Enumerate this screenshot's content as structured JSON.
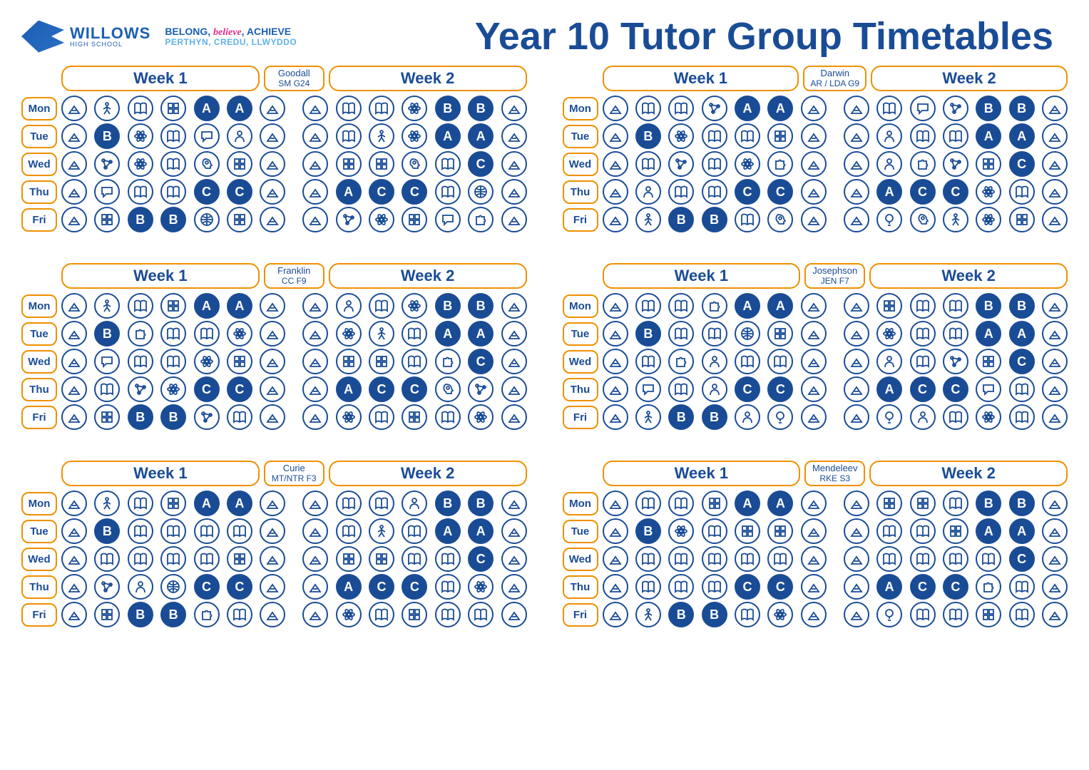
{
  "school": {
    "name": "WILLOWS",
    "sub": "HIGH SCHOOL"
  },
  "tagline": {
    "l1a": "BELONG,",
    "l1b": "believe",
    "l1c": ", ACHIEVE",
    "l2": "PERTHYN, CREDU, LLWYDDO"
  },
  "page_title": "Year 10 Tutor Group Timetables",
  "labels": {
    "week1": "Week 1",
    "week2": "Week 2"
  },
  "days": [
    "Mon",
    "Tue",
    "Wed",
    "Thu",
    "Fri"
  ],
  "colors": {
    "accent_orange": "#f09000",
    "brand_blue": "#1a4c96",
    "white": "#ffffff",
    "tagline_pink": "#e62b87",
    "tagline_cyan": "#5db3e8"
  },
  "icon_types": [
    "tutor",
    "pe",
    "book",
    "grid",
    "atom",
    "globe",
    "speech",
    "head",
    "person",
    "nodes",
    "think",
    "puzzle",
    "A",
    "B",
    "C"
  ],
  "groups": [
    {
      "name": "Goodall",
      "room": "SM G24",
      "w1": [
        [
          "tutor",
          "pe",
          "book",
          "grid",
          "A+",
          "A+",
          "tutor"
        ],
        [
          "tutor",
          "B+",
          "atom",
          "book",
          "speech",
          "person",
          "tutor"
        ],
        [
          "tutor",
          "nodes",
          "atom",
          "book",
          "head",
          "grid",
          "tutor"
        ],
        [
          "tutor",
          "speech",
          "book",
          "book",
          "C+",
          "C+",
          "tutor"
        ],
        [
          "tutor",
          "grid",
          "B+",
          "B+",
          "globe",
          "grid",
          "tutor"
        ]
      ],
      "w2": [
        [
          "tutor",
          "book",
          "book",
          "atom",
          "B+",
          "B+",
          "tutor"
        ],
        [
          "tutor",
          "book",
          "pe",
          "atom",
          "A+",
          "A+",
          "tutor"
        ],
        [
          "tutor",
          "grid",
          "grid",
          "head",
          "book",
          "C+",
          "tutor"
        ],
        [
          "tutor",
          "A+",
          "C+",
          "C+",
          "book",
          "globe",
          "tutor"
        ],
        [
          "tutor",
          "nodes",
          "atom",
          "grid",
          "speech",
          "puzzle",
          "tutor"
        ]
      ]
    },
    {
      "name": "Darwin",
      "room": "AR / LDA G9",
      "w1": [
        [
          "tutor",
          "book",
          "book",
          "nodes",
          "A+",
          "A+",
          "tutor"
        ],
        [
          "tutor",
          "B+",
          "atom",
          "book",
          "book",
          "grid",
          "tutor"
        ],
        [
          "tutor",
          "book",
          "nodes",
          "book",
          "atom",
          "puzzle",
          "tutor"
        ],
        [
          "tutor",
          "person",
          "book",
          "book",
          "C+",
          "C+",
          "tutor"
        ],
        [
          "tutor",
          "pe",
          "B+",
          "B+",
          "book",
          "head",
          "tutor"
        ]
      ],
      "w2": [
        [
          "tutor",
          "book",
          "speech",
          "nodes",
          "B+",
          "B+",
          "tutor"
        ],
        [
          "tutor",
          "person",
          "book",
          "book",
          "A+",
          "A+",
          "tutor"
        ],
        [
          "tutor",
          "person",
          "puzzle",
          "nodes",
          "grid",
          "C+",
          "tutor"
        ],
        [
          "tutor",
          "A+",
          "C+",
          "C+",
          "atom",
          "book",
          "tutor"
        ],
        [
          "tutor",
          "think",
          "head",
          "pe",
          "atom",
          "grid",
          "tutor"
        ]
      ]
    },
    {
      "name": "Franklin",
      "room": "CC F9",
      "w1": [
        [
          "tutor",
          "pe",
          "book",
          "grid",
          "A+",
          "A+",
          "tutor"
        ],
        [
          "tutor",
          "B+",
          "puzzle",
          "book",
          "book",
          "atom",
          "tutor"
        ],
        [
          "tutor",
          "speech",
          "book",
          "book",
          "atom",
          "grid",
          "tutor"
        ],
        [
          "tutor",
          "book",
          "nodes",
          "atom",
          "C+",
          "C+",
          "tutor"
        ],
        [
          "tutor",
          "grid",
          "B+",
          "B+",
          "nodes",
          "book",
          "tutor"
        ]
      ],
      "w2": [
        [
          "tutor",
          "person",
          "book",
          "atom",
          "B+",
          "B+",
          "tutor"
        ],
        [
          "tutor",
          "atom",
          "pe",
          "book",
          "A+",
          "A+",
          "tutor"
        ],
        [
          "tutor",
          "grid",
          "grid",
          "book",
          "puzzle",
          "C+",
          "tutor"
        ],
        [
          "tutor",
          "A+",
          "C+",
          "C+",
          "head",
          "nodes",
          "tutor"
        ],
        [
          "tutor",
          "atom",
          "book",
          "grid",
          "book",
          "atom",
          "tutor"
        ]
      ]
    },
    {
      "name": "Josephson",
      "room": "JEN F7",
      "w1": [
        [
          "tutor",
          "book",
          "book",
          "puzzle",
          "A+",
          "A+",
          "tutor"
        ],
        [
          "tutor",
          "B+",
          "book",
          "book",
          "globe",
          "grid",
          "tutor"
        ],
        [
          "tutor",
          "book",
          "puzzle",
          "person",
          "book",
          "book",
          "tutor"
        ],
        [
          "tutor",
          "speech",
          "book",
          "person",
          "C+",
          "C+",
          "tutor"
        ],
        [
          "tutor",
          "pe",
          "B+",
          "B+",
          "person",
          "think",
          "tutor"
        ]
      ],
      "w2": [
        [
          "tutor",
          "grid",
          "book",
          "book",
          "B+",
          "B+",
          "tutor"
        ],
        [
          "tutor",
          "atom",
          "book",
          "book",
          "A+",
          "A+",
          "tutor"
        ],
        [
          "tutor",
          "person",
          "book",
          "nodes",
          "grid",
          "C+",
          "tutor"
        ],
        [
          "tutor",
          "A+",
          "C+",
          "C+",
          "speech",
          "book",
          "tutor"
        ],
        [
          "tutor",
          "think",
          "person",
          "book",
          "atom",
          "book",
          "tutor"
        ]
      ]
    },
    {
      "name": "Curie",
      "room": "MT/NTR F3",
      "w1": [
        [
          "tutor",
          "pe",
          "book",
          "grid",
          "A+",
          "A+",
          "tutor"
        ],
        [
          "tutor",
          "B+",
          "book",
          "book",
          "book",
          "book",
          "tutor"
        ],
        [
          "tutor",
          "book",
          "book",
          "book",
          "book",
          "grid",
          "tutor"
        ],
        [
          "tutor",
          "nodes",
          "person",
          "globe",
          "C+",
          "C+",
          "tutor"
        ],
        [
          "tutor",
          "grid",
          "B+",
          "B+",
          "puzzle",
          "book",
          "tutor"
        ]
      ],
      "w2": [
        [
          "tutor",
          "book",
          "book",
          "person",
          "B+",
          "B+",
          "tutor"
        ],
        [
          "tutor",
          "book",
          "pe",
          "book",
          "A+",
          "A+",
          "tutor"
        ],
        [
          "tutor",
          "grid",
          "grid",
          "book",
          "book",
          "C+",
          "tutor"
        ],
        [
          "tutor",
          "A+",
          "C+",
          "C+",
          "book",
          "atom",
          "tutor"
        ],
        [
          "tutor",
          "atom",
          "book",
          "grid",
          "book",
          "book",
          "tutor"
        ]
      ]
    },
    {
      "name": "Mendeleev",
      "room": "RKE S3",
      "w1": [
        [
          "tutor",
          "book",
          "book",
          "grid",
          "A+",
          "A+",
          "tutor"
        ],
        [
          "tutor",
          "B+",
          "atom",
          "book",
          "grid",
          "grid",
          "tutor"
        ],
        [
          "tutor",
          "book",
          "book",
          "book",
          "book",
          "book",
          "tutor"
        ],
        [
          "tutor",
          "book",
          "book",
          "book",
          "C+",
          "C+",
          "tutor"
        ],
        [
          "tutor",
          "pe",
          "B+",
          "B+",
          "book",
          "atom",
          "tutor"
        ]
      ],
      "w2": [
        [
          "tutor",
          "grid",
          "grid",
          "book",
          "B+",
          "B+",
          "tutor"
        ],
        [
          "tutor",
          "book",
          "book",
          "grid",
          "A+",
          "A+",
          "tutor"
        ],
        [
          "tutor",
          "book",
          "book",
          "book",
          "book",
          "C+",
          "tutor"
        ],
        [
          "tutor",
          "A+",
          "C+",
          "C+",
          "puzzle",
          "book",
          "tutor"
        ],
        [
          "tutor",
          "think",
          "book",
          "book",
          "grid",
          "book",
          "tutor"
        ]
      ]
    }
  ]
}
